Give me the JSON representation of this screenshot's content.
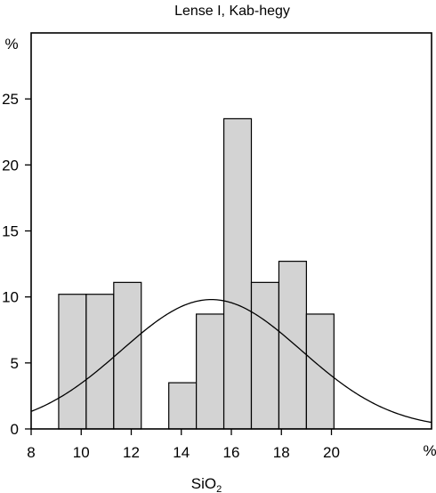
{
  "chart_data": {
    "type": "bar",
    "title": "Lense I, Kab-hegy",
    "xlabel": "SiO",
    "xlabel_subscript": "2",
    "xunit": "%",
    "ylabel": "%",
    "xlim": [
      8,
      24
    ],
    "ylim": [
      0,
      30
    ],
    "xticks": [
      8,
      10,
      12,
      14,
      16,
      18,
      20
    ],
    "yticks": [
      0,
      5,
      10,
      15,
      20,
      25
    ],
    "bar_color": "#d3d3d3",
    "bars": [
      {
        "x0": 9.1,
        "x1": 10.2,
        "value": 10.2
      },
      {
        "x0": 10.2,
        "x1": 11.3,
        "value": 10.2
      },
      {
        "x0": 11.3,
        "x1": 12.4,
        "value": 11.1
      },
      {
        "x0": 13.5,
        "x1": 14.6,
        "value": 3.5
      },
      {
        "x0": 14.6,
        "x1": 15.7,
        "value": 8.7
      },
      {
        "x0": 15.7,
        "x1": 16.8,
        "value": 23.5
      },
      {
        "x0": 16.8,
        "x1": 17.9,
        "value": 11.1
      },
      {
        "x0": 17.9,
        "x1": 19.0,
        "value": 12.7
      },
      {
        "x0": 19.0,
        "x1": 20.1,
        "value": 8.7
      }
    ],
    "curve": {
      "type": "normal",
      "mean": 15.2,
      "sd": 3.6,
      "peak": 9.8
    }
  }
}
